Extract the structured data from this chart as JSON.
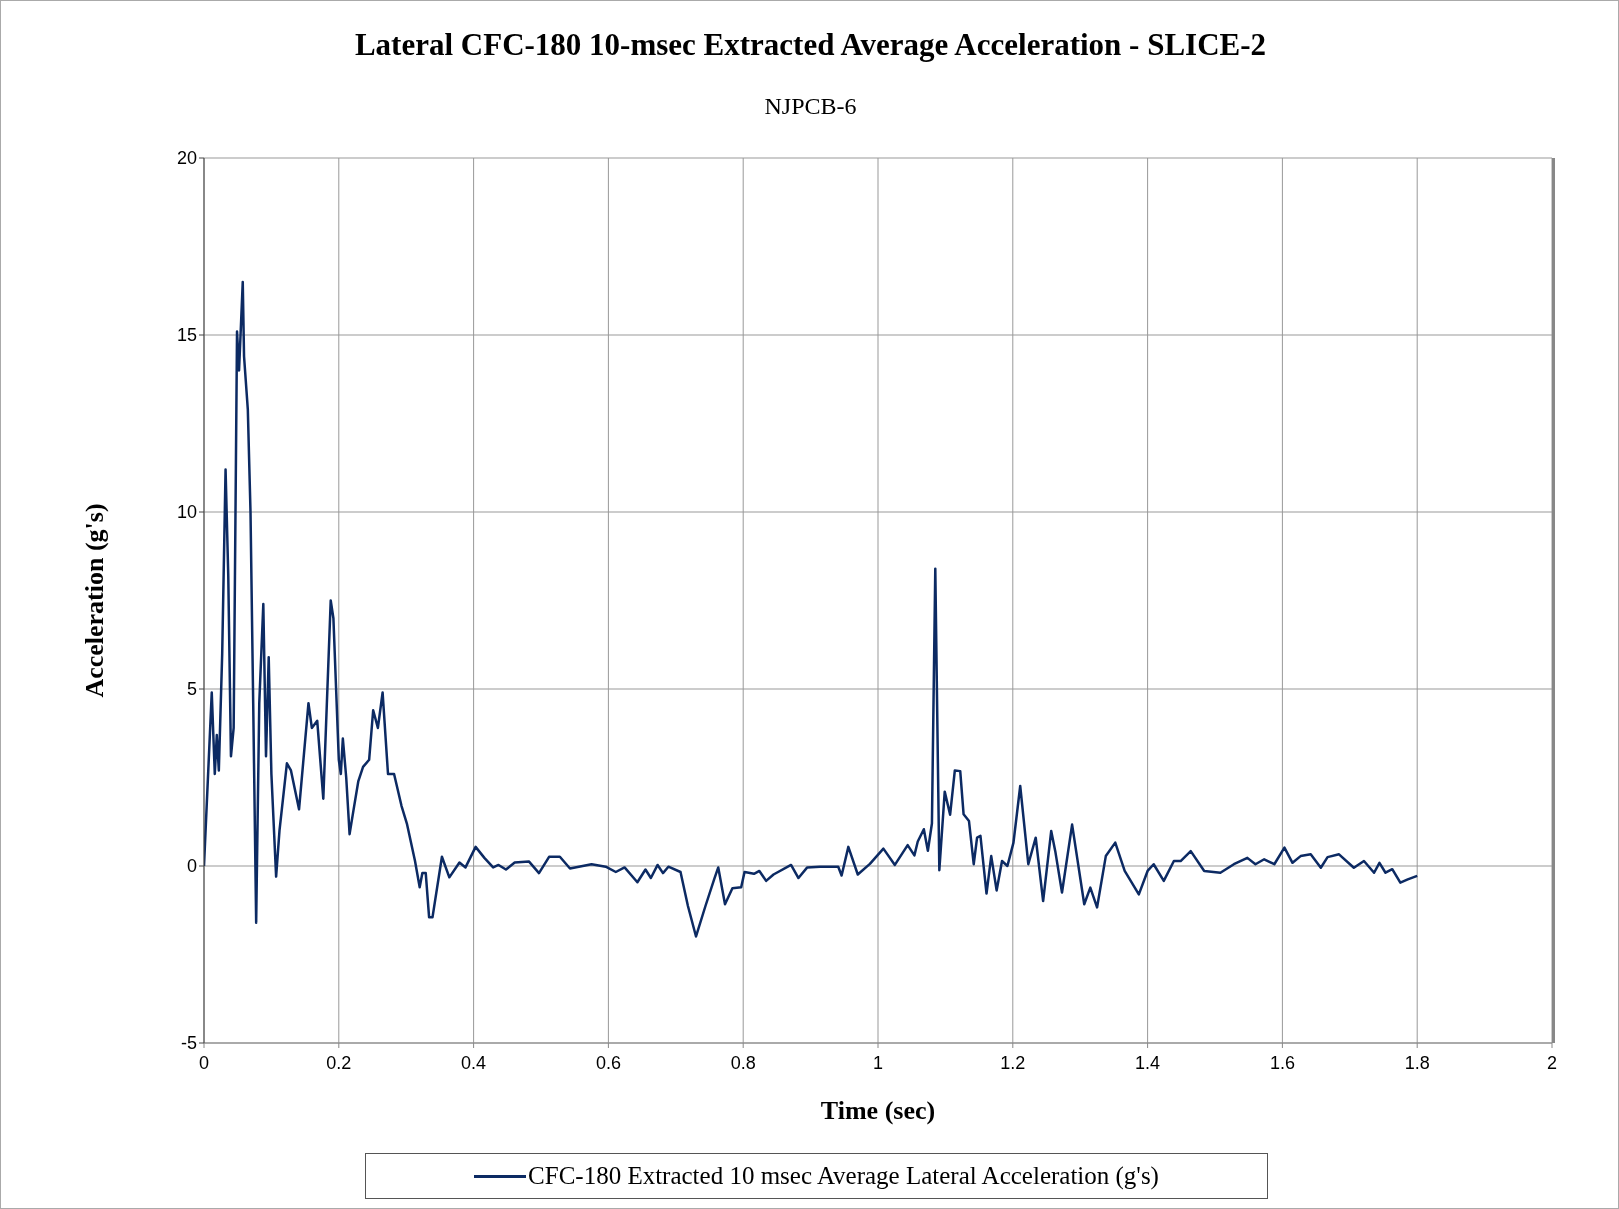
{
  "chart_data": {
    "type": "line",
    "title": "Lateral CFC-180 10-msec Extracted Average Acceleration - SLICE-2",
    "subtitle": "NJPCB-6",
    "xlabel": "Time (sec)",
    "ylabel": "Acceleration (g's)",
    "xlim": [
      0,
      2
    ],
    "xticks": [
      0,
      0.2,
      0.4,
      0.6,
      0.8,
      1,
      1.2,
      1.4,
      1.6,
      1.8,
      2
    ],
    "ylim": [
      -5,
      20
    ],
    "yticks": [
      -5,
      0,
      5,
      10,
      15,
      20
    ],
    "grid": true,
    "legend": "bottom",
    "marker": "none",
    "line_style": "solid",
    "series": [
      {
        "name": "CFC-180 Extracted 10 msec Average Lateral Acceleration (g's)",
        "color": "#0c2a63",
        "x": [
          0,
          0.0115,
          0.016,
          0.019,
          0.022,
          0.027,
          0.032,
          0.036,
          0.04,
          0.044,
          0.049,
          0.052,
          0.054,
          0.0575,
          0.0594,
          0.065,
          0.069,
          0.073,
          0.0774,
          0.082,
          0.088,
          0.092,
          0.096,
          0.1,
          0.107,
          0.112,
          0.123,
          0.129,
          0.141,
          0.155,
          0.16,
          0.168,
          0.177,
          0.188,
          0.192,
          0.2,
          0.203,
          0.206,
          0.211,
          0.216,
          0.222,
          0.229,
          0.236,
          0.245,
          0.251,
          0.258,
          0.265,
          0.273,
          0.282,
          0.293,
          0.301,
          0.313,
          0.32,
          0.324,
          0.329,
          0.334,
          0.339,
          0.353,
          0.364,
          0.379,
          0.388,
          0.403,
          0.416,
          0.429,
          0.437,
          0.448,
          0.461,
          0.482,
          0.497,
          0.512,
          0.528,
          0.543,
          0.575,
          0.596,
          0.611,
          0.624,
          0.643,
          0.655,
          0.663,
          0.673,
          0.681,
          0.689,
          0.707,
          0.718,
          0.73,
          0.744,
          0.757,
          0.763,
          0.773,
          0.784,
          0.797,
          0.802,
          0.816,
          0.824,
          0.834,
          0.845,
          0.871,
          0.882,
          0.895,
          0.914,
          0.941,
          0.946,
          0.956,
          0.97,
          0.988,
          1.008,
          1.025,
          1.044,
          1.054,
          1.059,
          1.068,
          1.074,
          1.08,
          1.085,
          1.091,
          1.099,
          1.107,
          1.114,
          1.122,
          1.127,
          1.135,
          1.142,
          1.147,
          1.152,
          1.161,
          1.168,
          1.176,
          1.184,
          1.192,
          1.201,
          1.211,
          1.223,
          1.234,
          1.245,
          1.257,
          1.263,
          1.273,
          1.288,
          1.306,
          1.315,
          1.325,
          1.338,
          1.352,
          1.366,
          1.387,
          1.4,
          1.409,
          1.424,
          1.439,
          1.449,
          1.464,
          1.484,
          1.508,
          1.528,
          1.548,
          1.56,
          1.573,
          1.588,
          1.603,
          1.615,
          1.627,
          1.642,
          1.657,
          1.667,
          1.684,
          1.706,
          1.721,
          1.736,
          1.744,
          1.753,
          1.763,
          1.775,
          1.786,
          1.8
        ],
        "values": [
          0,
          4.9,
          2.6,
          3.7,
          2.7,
          6.0,
          11.2,
          8.2,
          3.1,
          3.9,
          15.1,
          14.0,
          14.9,
          16.5,
          14.4,
          12.9,
          10.0,
          4.6,
          -1.6,
          4.6,
          7.4,
          3.1,
          5.9,
          2.6,
          -0.3,
          1.0,
          2.9,
          2.7,
          1.6,
          4.6,
          3.9,
          4.1,
          1.9,
          7.5,
          7.0,
          3.0,
          2.6,
          3.6,
          2.5,
          0.9,
          1.6,
          2.4,
          2.8,
          3.0,
          4.4,
          3.9,
          4.9,
          2.6,
          2.6,
          1.7,
          1.2,
          0.15,
          -0.6,
          -0.2,
          -0.2,
          -1.45,
          -1.45,
          0.26,
          -0.32,
          0.1,
          -0.04,
          0.54,
          0.23,
          -0.04,
          0.03,
          -0.1,
          0.1,
          0.13,
          -0.2,
          0.26,
          0.26,
          -0.07,
          0.05,
          -0.02,
          -0.17,
          -0.04,
          -0.46,
          -0.1,
          -0.34,
          0.03,
          -0.2,
          -0.02,
          -0.17,
          -1.13,
          -1.99,
          -1.13,
          -0.37,
          -0.04,
          -1.08,
          -0.63,
          -0.6,
          -0.17,
          -0.22,
          -0.14,
          -0.42,
          -0.24,
          0.03,
          -0.34,
          -0.04,
          -0.02,
          -0.02,
          -0.27,
          0.54,
          -0.24,
          0.06,
          0.49,
          0.03,
          0.59,
          0.3,
          0.69,
          1.04,
          0.43,
          1.2,
          8.4,
          -0.12,
          2.1,
          1.45,
          2.7,
          2.68,
          1.46,
          1.27,
          0.05,
          0.8,
          0.85,
          -0.78,
          0.28,
          -0.69,
          0.14,
          0,
          0.66,
          2.26,
          0.05,
          0.8,
          -0.99,
          0.99,
          0.42,
          -0.75,
          1.17,
          -1.08,
          -0.61,
          -1.17,
          0.28,
          0.66,
          -0.14,
          -0.8,
          -0.14,
          0.05,
          -0.42,
          0.14,
          0.14,
          0.42,
          -0.14,
          -0.19,
          0.05,
          0.23,
          0.05,
          0.19,
          0.05,
          0.52,
          0.09,
          0.28,
          0.33,
          -0.05,
          0.25,
          0.33,
          -0.05,
          0.14,
          -0.19,
          0.09,
          -0.19,
          -0.09,
          -0.47,
          -0.38,
          -0.28
        ]
      }
    ]
  }
}
